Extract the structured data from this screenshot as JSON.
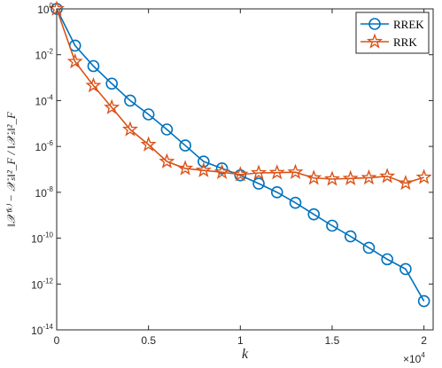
{
  "chart_data": {
    "type": "line",
    "xlabel": "k",
    "ylabel": "‖𝒳⁽ᵏ⁾ − 𝒳ₛ‖²_F / ‖𝒳ₛ‖²_F",
    "x_multiplier_label": "×10",
    "x_multiplier_exponent": "4",
    "xlim": [
      0,
      20500
    ],
    "ylim": [
      1e-14,
      1
    ],
    "y_scale": "log",
    "x_ticks": [
      0,
      5000,
      10000,
      15000,
      20000
    ],
    "x_tick_labels": [
      "0",
      "0.5",
      "1",
      "1.5",
      "2"
    ],
    "y_ticks": [
      1,
      0.01,
      0.0001,
      1e-06,
      1e-08,
      1e-10,
      1e-12,
      1e-14
    ],
    "y_tick_base": "10",
    "y_tick_exponents": [
      "0",
      "-2",
      "-4",
      "-6",
      "-8",
      "-10",
      "-12",
      "-14"
    ],
    "grid": false,
    "legend_position": "top-right",
    "series": [
      {
        "name": "RREK",
        "color": "#0072BD",
        "marker": "circle",
        "x": [
          0,
          1000,
          2000,
          3000,
          4000,
          5000,
          6000,
          7000,
          8000,
          9000,
          10000,
          11000,
          12000,
          13000,
          14000,
          15000,
          16000,
          17000,
          18000,
          19000,
          20000
        ],
        "y": [
          1,
          0.025,
          0.0032,
          0.00055,
          0.0001,
          2.5e-05,
          5.5e-06,
          1.1e-06,
          2.2e-07,
          1.1e-07,
          5.5e-08,
          2.4e-08,
          1e-08,
          3.5e-09,
          1.1e-09,
          3.5e-10,
          1.2e-10,
          3.8e-11,
          1.2e-11,
          4.5e-12,
          1.8e-13
        ]
      },
      {
        "name": "RRK",
        "color": "#D95319",
        "marker": "star",
        "x": [
          0,
          1000,
          2000,
          3000,
          4000,
          5000,
          6000,
          7000,
          8000,
          9000,
          10000,
          11000,
          12000,
          13000,
          14000,
          15000,
          16000,
          17000,
          18000,
          19000,
          20000
        ],
        "y": [
          1,
          0.005,
          0.00045,
          5e-05,
          5.5e-06,
          1.2e-06,
          2.2e-07,
          1.1e-07,
          9e-08,
          7.5e-08,
          6e-08,
          7e-08,
          7.2e-08,
          7.5e-08,
          4.2e-08,
          3.8e-08,
          4e-08,
          4.3e-08,
          5e-08,
          2.5e-08,
          4.5e-08
        ]
      }
    ]
  }
}
